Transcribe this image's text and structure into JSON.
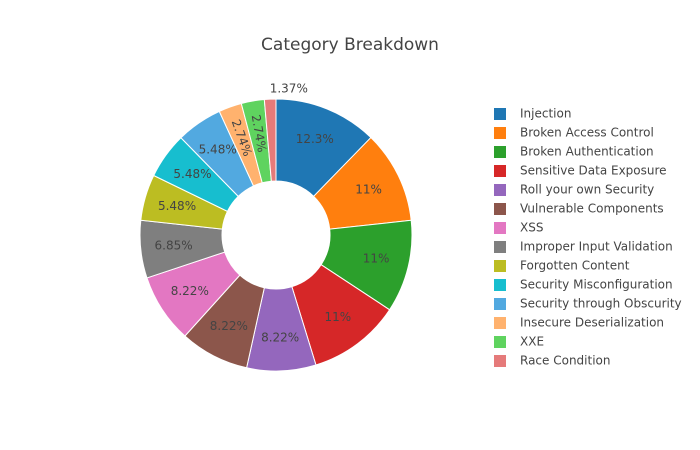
{
  "chart_data": {
    "type": "pie",
    "title": "Category Breakdown",
    "legend_position": "right",
    "hole": true,
    "slices": [
      {
        "name": "Injection",
        "value": 12.3,
        "label": "12.3%",
        "color": "#1f77b4"
      },
      {
        "name": "Broken Access Control",
        "value": 11,
        "label": "11%",
        "color": "#ff7f0e"
      },
      {
        "name": "Broken Authentication",
        "value": 11,
        "label": "11%",
        "color": "#2ca02c"
      },
      {
        "name": "Sensitive Data Exposure",
        "value": 11,
        "label": "11%",
        "color": "#d62728"
      },
      {
        "name": "Roll your own Security",
        "value": 8.22,
        "label": "8.22%",
        "color": "#9467bd"
      },
      {
        "name": "Vulnerable Components",
        "value": 8.22,
        "label": "8.22%",
        "color": "#8c564b"
      },
      {
        "name": "XSS",
        "value": 8.22,
        "label": "8.22%",
        "color": "#e377c2"
      },
      {
        "name": "Improper Input Validation",
        "value": 6.85,
        "label": "6.85%",
        "color": "#7f7f7f"
      },
      {
        "name": "Forgotten Content",
        "value": 5.48,
        "label": "5.48%",
        "color": "#bcbd22"
      },
      {
        "name": "Security Misconfiguration",
        "value": 5.48,
        "label": "5.48%",
        "color": "#17becf"
      },
      {
        "name": "Security through Obscurity",
        "value": 5.48,
        "label": "5.48%",
        "color": "#52a9e0"
      },
      {
        "name": "Insecure Deserialization",
        "value": 2.74,
        "label": "2.74%",
        "color": "#ffb26e"
      },
      {
        "name": "XXE",
        "value": 2.74,
        "label": "2.74%",
        "color": "#5fd35f"
      },
      {
        "name": "Race Condition",
        "value": 1.37,
        "label": "1.37%",
        "color": "#e57a7a"
      }
    ]
  }
}
